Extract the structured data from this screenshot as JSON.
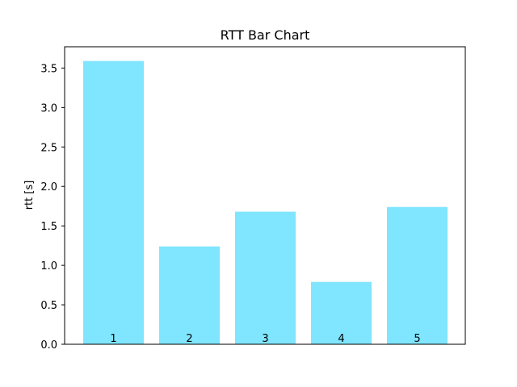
{
  "chart_data": {
    "type": "bar",
    "title": "RTT Bar Chart",
    "xlabel": "",
    "ylabel": "rtt [s]",
    "categories": [
      "1",
      "2",
      "3",
      "4",
      "5"
    ],
    "values": [
      3.59,
      1.24,
      1.68,
      0.79,
      1.74
    ],
    "ylim": [
      0,
      3.77
    ],
    "yticks": [
      "0.0",
      "0.5",
      "1.0",
      "1.5",
      "2.0",
      "2.5",
      "3.0",
      "3.5"
    ],
    "show_xticks": false,
    "grid": false,
    "legend": "none",
    "bar_labels_inside_bottom": true,
    "colors": {
      "bar": "#80e5ff",
      "axes": "#000000",
      "background": "#ffffff"
    }
  }
}
